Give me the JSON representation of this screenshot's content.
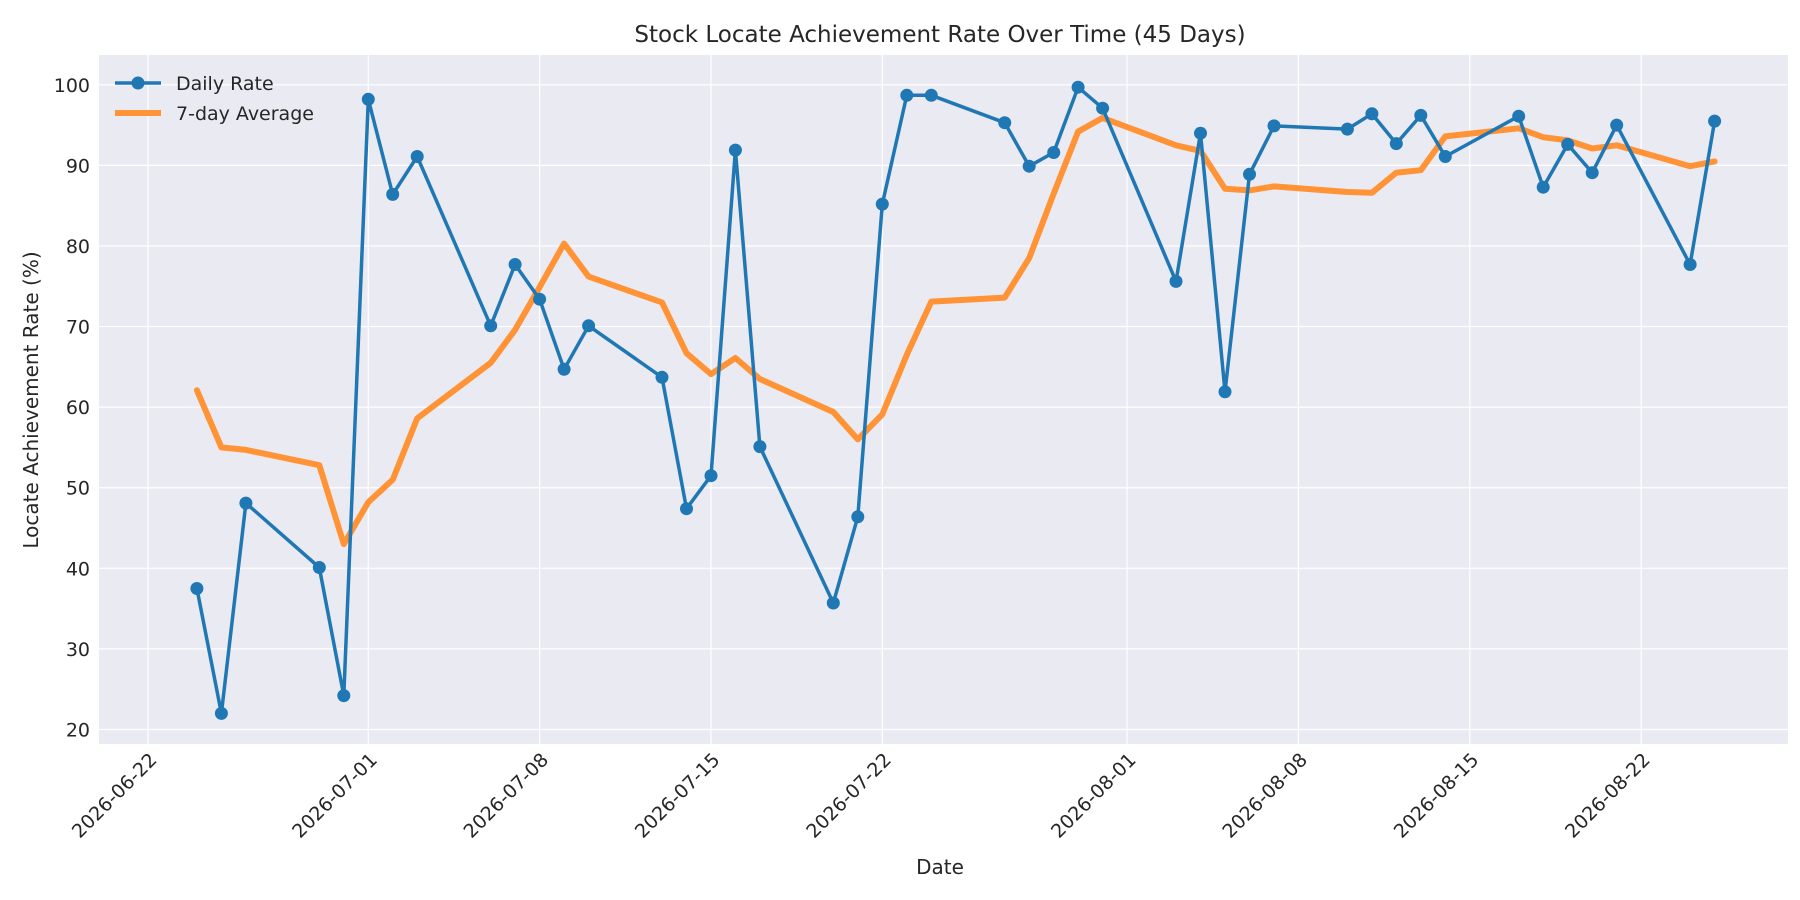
{
  "chart_data": {
    "type": "line",
    "title": "Stock Locate Achievement Rate Over Time (45 Days)",
    "xlabel": "Date",
    "ylabel": "Locate Achievement Rate (%)",
    "x_ticks": [
      "2026-06-22",
      "2026-07-01",
      "2026-07-08",
      "2026-07-15",
      "2026-07-22",
      "2026-08-01",
      "2026-08-08",
      "2026-08-15",
      "2026-08-22"
    ],
    "y_ticks": [
      20,
      30,
      40,
      50,
      60,
      70,
      80,
      90,
      100
    ],
    "xlim": [
      "2026-06-20",
      "2026-08-28"
    ],
    "ylim": [
      18.2,
      103.7
    ],
    "grid": true,
    "legend_position": "top-left",
    "colors": {
      "daily": "#1f77b4",
      "average": "#ff9335",
      "plot_background": "#eaeaf2",
      "grid": "#ffffff"
    },
    "series": [
      {
        "name": "Daily Rate",
        "marker": "circle",
        "x": [
          "2026-06-24",
          "2026-06-25",
          "2026-06-26",
          "2026-06-29",
          "2026-06-30",
          "2026-07-01",
          "2026-07-02",
          "2026-07-03",
          "2026-07-06",
          "2026-07-07",
          "2026-07-08",
          "2026-07-09",
          "2026-07-10",
          "2026-07-13",
          "2026-07-14",
          "2026-07-15",
          "2026-07-16",
          "2026-07-17",
          "2026-07-20",
          "2026-07-21",
          "2026-07-22",
          "2026-07-23",
          "2026-07-24",
          "2026-07-27",
          "2026-07-28",
          "2026-07-29",
          "2026-07-30",
          "2026-07-31",
          "2026-08-03",
          "2026-08-04",
          "2026-08-05",
          "2026-08-06",
          "2026-08-07",
          "2026-08-10",
          "2026-08-11",
          "2026-08-12",
          "2026-08-13",
          "2026-08-14",
          "2026-08-17",
          "2026-08-18",
          "2026-08-19",
          "2026-08-20",
          "2026-08-21",
          "2026-08-24",
          "2026-08-25"
        ],
        "values": [
          37.5,
          22.0,
          48.1,
          40.1,
          24.2,
          98.2,
          86.4,
          91.1,
          70.1,
          77.7,
          73.4,
          64.7,
          70.1,
          63.7,
          47.4,
          51.5,
          91.9,
          55.1,
          35.7,
          46.4,
          85.2,
          98.7,
          98.7,
          95.3,
          89.9,
          91.6,
          99.7,
          97.1,
          75.6,
          94.0,
          61.9,
          88.9,
          94.9,
          94.5,
          96.4,
          92.7,
          96.2,
          91.1,
          96.1,
          87.3,
          92.6,
          89.1,
          95.0,
          77.7,
          95.5
        ]
      },
      {
        "name": "7-day Average",
        "marker": "none",
        "x": [
          "2026-06-24",
          "2026-06-25",
          "2026-06-26",
          "2026-06-29",
          "2026-06-30",
          "2026-07-01",
          "2026-07-02",
          "2026-07-03",
          "2026-07-06",
          "2026-07-07",
          "2026-07-08",
          "2026-07-09",
          "2026-07-10",
          "2026-07-13",
          "2026-07-14",
          "2026-07-15",
          "2026-07-16",
          "2026-07-17",
          "2026-07-20",
          "2026-07-21",
          "2026-07-22",
          "2026-07-23",
          "2026-07-24",
          "2026-07-27",
          "2026-07-28",
          "2026-07-29",
          "2026-07-30",
          "2026-07-31",
          "2026-08-03",
          "2026-08-04",
          "2026-08-05",
          "2026-08-06",
          "2026-08-07",
          "2026-08-10",
          "2026-08-11",
          "2026-08-12",
          "2026-08-13",
          "2026-08-14",
          "2026-08-17",
          "2026-08-18",
          "2026-08-19",
          "2026-08-20",
          "2026-08-21",
          "2026-08-24",
          "2026-08-25"
        ],
        "values": [
          62.1,
          55.0,
          54.7,
          52.8,
          43.0,
          48.2,
          51.0,
          58.6,
          65.5,
          69.6,
          74.9,
          80.3,
          76.2,
          73.0,
          66.7,
          64.1,
          66.1,
          63.5,
          59.4,
          56.0,
          59.1,
          66.5,
          73.1,
          73.6,
          78.5,
          86.5,
          94.2,
          95.9,
          92.5,
          91.8,
          87.1,
          86.9,
          87.4,
          86.7,
          86.6,
          89.1,
          89.4,
          93.6,
          94.6,
          93.5,
          93.1,
          92.1,
          92.5,
          89.9,
          90.5
        ]
      }
    ]
  }
}
